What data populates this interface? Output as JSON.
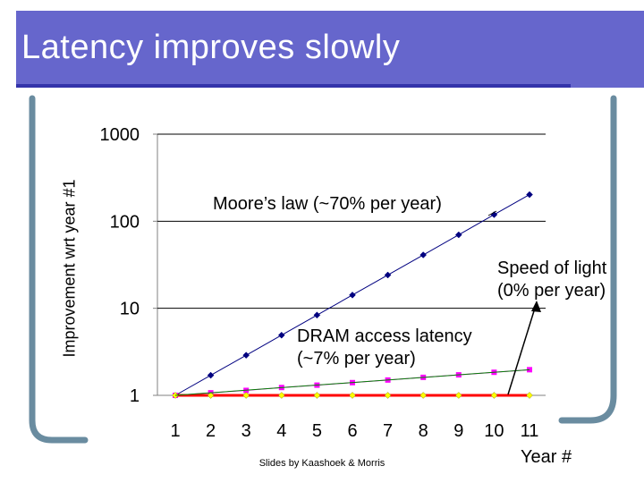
{
  "slide": {
    "title": "Latency improves slowly",
    "footer": "Slides by Kaashoek & Morris"
  },
  "colors": {
    "title_band": "#6666cc",
    "frame": "#6a8ca0",
    "moore": "#000080",
    "dram": "#ff00ff",
    "dram_trend": "#008000",
    "light": "#ff0000",
    "light_marker": "#ffff00"
  },
  "chart_data": {
    "type": "line",
    "xlabel": "Year #",
    "ylabel": "Improvement wrt year #1",
    "y_scale": "log",
    "ylim": [
      1,
      1000
    ],
    "yticks": [
      "1",
      "10",
      "100",
      "1000"
    ],
    "grid": "y",
    "categories": [
      "1",
      "2",
      "3",
      "4",
      "5",
      "6",
      "7",
      "8",
      "9",
      "10",
      "11"
    ],
    "series": [
      {
        "name": "Moore’s law (~70% per year)",
        "marker": "diamond",
        "values": [
          1,
          1.7,
          2.89,
          4.91,
          8.35,
          14.2,
          24.1,
          41.0,
          69.8,
          119,
          202
        ]
      },
      {
        "name": "DRAM access latency (~7% per year)",
        "marker": "square",
        "values": [
          1,
          1.07,
          1.14,
          1.23,
          1.31,
          1.4,
          1.5,
          1.61,
          1.72,
          1.84,
          1.97
        ]
      },
      {
        "name": "Speed of light (0% per year)",
        "marker": "diamond",
        "values": [
          1,
          1,
          1,
          1,
          1,
          1,
          1,
          1,
          1,
          1,
          1
        ]
      }
    ],
    "annotations": [
      {
        "text": [
          "Moore’s law (~70% per year)"
        ]
      },
      {
        "text": [
          "Speed of light",
          "(0% per year)"
        ]
      },
      {
        "text": [
          "DRAM access latency",
          "(~7% per year)"
        ]
      }
    ]
  }
}
